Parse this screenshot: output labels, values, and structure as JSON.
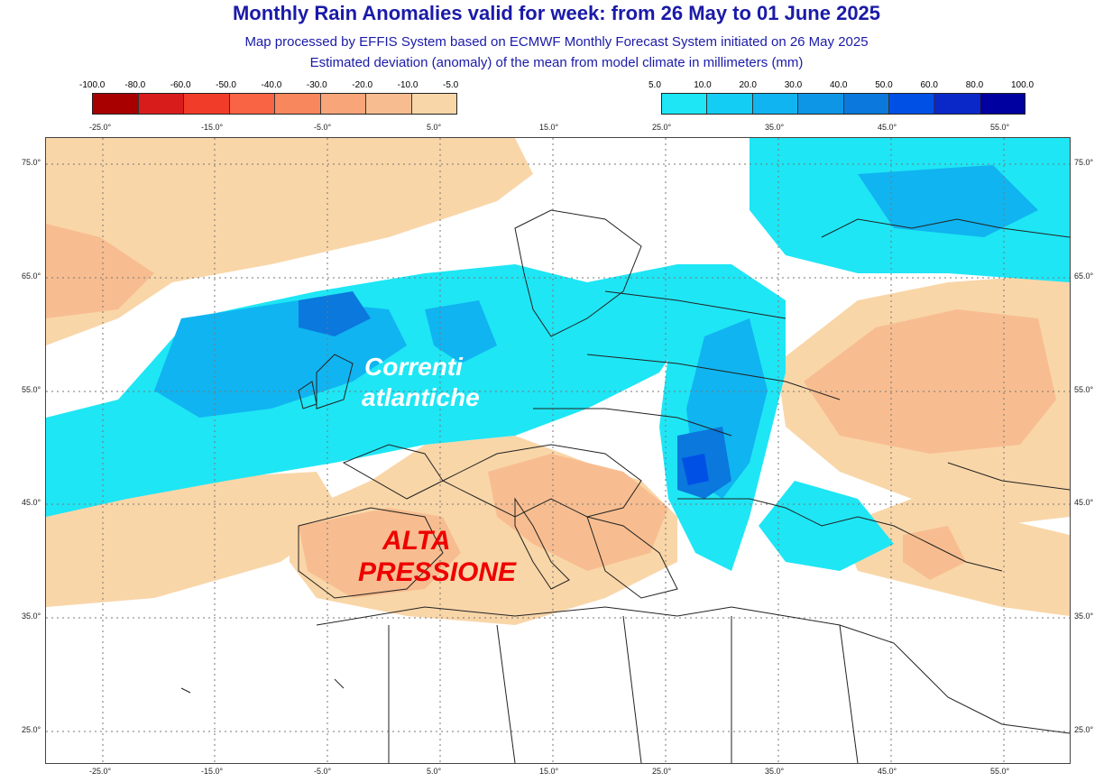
{
  "header": {
    "title": "Monthly Rain Anomalies valid for week: from 26 May to 01 June 2025",
    "subtitle1": "Map processed by EFFIS System based on ECMWF Monthly Forecast System initiated on 26 May 2025",
    "subtitle2": "Estimated deviation (anomaly) of the mean from model climate in millimeters (mm)"
  },
  "legend": {
    "negative": {
      "labels": [
        "-100.0",
        "-80.0",
        "-60.0",
        "-50.0",
        "-40.0",
        "-30.0",
        "-20.0",
        "-10.0",
        "-5.0"
      ],
      "colors": [
        "#a80000",
        "#d81c1c",
        "#f03c28",
        "#f86444",
        "#f9875e",
        "#f8a57a",
        "#f7bd90",
        "#f9d6a8"
      ]
    },
    "positive": {
      "labels": [
        "5.0",
        "10.0",
        "20.0",
        "30.0",
        "40.0",
        "50.0",
        "60.0",
        "80.0",
        "100.0"
      ],
      "colors": [
        "#1ee6f5",
        "#14cdf5",
        "#10b4f0",
        "#0e96e6",
        "#0a78dc",
        "#0050e6",
        "#0a28c8",
        "#0000a0"
      ]
    }
  },
  "map": {
    "lon_labels": [
      "-25.0°",
      "-15.0°",
      "-5.0°",
      "5.0°",
      "15.0°",
      "25.0°",
      "35.0°",
      "45.0°",
      "55.0°"
    ],
    "lat_labels": [
      "75.0°",
      "65.0°",
      "55.0°",
      "45.0°",
      "35.0°",
      "25.0°"
    ],
    "overlays": {
      "correnti": "Correnti",
      "atlantiche": "atlantiche",
      "alta": "ALTA",
      "pressione": "PRESSIONE"
    },
    "colors": {
      "dry": "#f9d6a8",
      "dry2": "#f7bd90",
      "wet1": "#1ee6f5",
      "wet2": "#10b4f0",
      "wet3": "#0a78dc",
      "wet4": "#0050e6"
    }
  }
}
